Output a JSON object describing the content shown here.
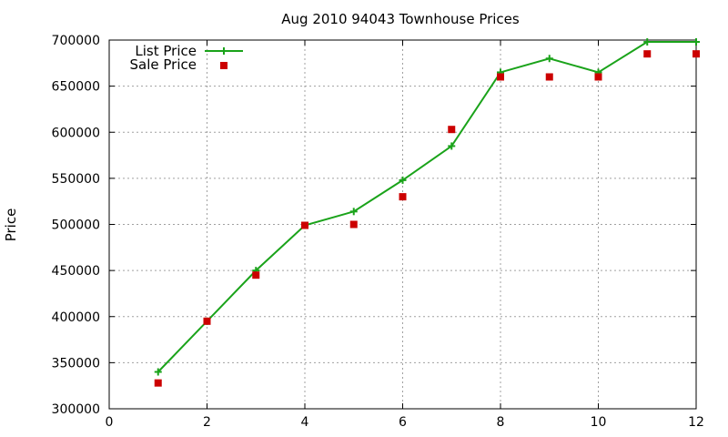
{
  "chart_data": {
    "type": "line",
    "title": "Aug 2010 94043 Townhouse Prices",
    "xlabel": "",
    "ylabel": "Price",
    "xlim": [
      0,
      12
    ],
    "ylim": [
      300000,
      700000
    ],
    "x_ticks": [
      "0",
      "2",
      "4",
      "6",
      "8",
      "10",
      "12"
    ],
    "y_ticks": [
      "300000",
      "350000",
      "400000",
      "450000",
      "500000",
      "550000",
      "600000",
      "650000",
      "700000"
    ],
    "grid": true,
    "legend_position": "top-left",
    "series": [
      {
        "name": "List Price",
        "style": "line-with-plus-markers",
        "color": "#1aa31a",
        "x": [
          1,
          2,
          3,
          4,
          5,
          6,
          7,
          8,
          9,
          10,
          11,
          12
        ],
        "y": [
          340000,
          395000,
          450000,
          499000,
          514000,
          548000,
          585000,
          665000,
          680000,
          665000,
          698000,
          698000
        ]
      },
      {
        "name": "Sale Price",
        "style": "square-markers",
        "color": "#cc0000",
        "x": [
          1,
          2,
          3,
          4,
          5,
          6,
          7,
          8,
          9,
          10,
          11,
          12
        ],
        "y": [
          328000,
          395000,
          445000,
          499000,
          500000,
          530000,
          603000,
          660000,
          660000,
          660000,
          685000,
          685000
        ]
      }
    ]
  }
}
